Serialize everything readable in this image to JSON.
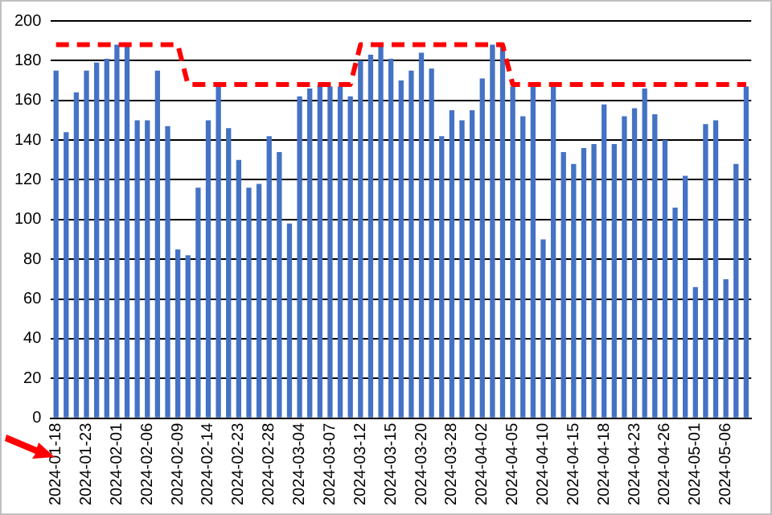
{
  "chart_data": {
    "type": "bar",
    "categories": [
      "2024-01-18",
      null,
      null,
      "2024-01-23",
      null,
      null,
      "2024-02-01",
      null,
      null,
      "2024-02-06",
      null,
      null,
      "2024-02-09",
      null,
      null,
      "2024-02-14",
      null,
      null,
      "2024-02-23",
      null,
      null,
      "2024-02-28",
      null,
      null,
      "2024-03-04",
      null,
      null,
      "2024-03-07",
      null,
      null,
      "2024-03-12",
      null,
      null,
      "2024-03-15",
      null,
      null,
      "2024-03-20",
      null,
      null,
      "2024-03-28",
      null,
      null,
      "2024-04-02",
      null,
      null,
      "2024-04-05",
      null,
      null,
      "2024-04-10",
      null,
      null,
      "2024-04-15",
      null,
      null,
      "2024-04-18",
      null,
      null,
      "2024-04-23",
      null,
      null,
      "2024-04-26",
      null,
      null,
      "2024-05-01",
      null,
      null,
      "2024-05-06",
      null,
      null
    ],
    "series": [
      {
        "color": "#4472c4",
        "values": [
          175,
          144,
          164,
          175,
          179,
          181,
          188,
          187,
          150,
          150,
          175,
          147,
          85,
          82,
          116,
          150,
          167,
          146,
          130,
          116,
          118,
          142,
          134,
          98,
          162,
          166,
          168,
          167,
          167,
          162,
          180,
          183,
          187,
          181,
          170,
          175,
          184,
          176,
          142,
          155,
          150,
          155,
          171,
          188,
          187,
          167,
          152,
          167,
          90,
          167,
          134,
          128,
          136,
          138,
          158,
          138,
          152,
          156,
          166,
          153,
          140,
          106,
          122,
          66,
          148,
          150,
          70,
          128,
          167
        ]
      },
      {
        "type": "line",
        "color": "#ff0000",
        "line_style": "dashed",
        "marker": "none",
        "values": [
          188,
          188,
          188,
          188,
          188,
          188,
          188,
          188,
          188,
          188,
          188,
          188,
          188,
          168,
          168,
          168,
          168,
          168,
          168,
          168,
          168,
          168,
          168,
          168,
          168,
          168,
          168,
          168,
          168,
          168,
          188,
          188,
          188,
          188,
          188,
          188,
          188,
          188,
          188,
          188,
          188,
          188,
          188,
          188,
          188,
          168,
          168,
          168,
          168,
          168,
          168,
          168,
          168,
          168,
          168,
          168,
          168,
          168,
          168,
          168,
          168,
          168,
          168,
          168,
          168,
          168,
          168,
          168,
          168
        ]
      }
    ],
    "ylim": [
      0,
      200
    ],
    "yticks": [
      0,
      20,
      40,
      60,
      80,
      100,
      120,
      140,
      160,
      180,
      200
    ],
    "grid": "y",
    "legend": false
  }
}
